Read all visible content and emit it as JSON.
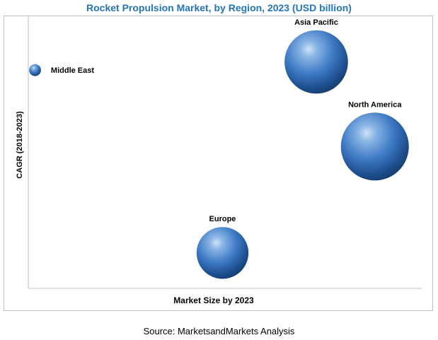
{
  "chart_data": {
    "type": "bubble",
    "title": "Rocket Propulsion Market, by Region, 2023 (USD billion)",
    "xlabel": "Market Size by 2023",
    "ylabel": "CAGR (2018-2023)",
    "xlim": [
      0,
      100
    ],
    "ylim": [
      0,
      100
    ],
    "grid": false,
    "legend": "none",
    "bubble_color": "#3d79c4",
    "points": [
      {
        "label": "Middle East",
        "x": 1,
        "y": 80,
        "size": 1
      },
      {
        "label": "Asia Pacific",
        "x": 73,
        "y": 83,
        "size": 86
      },
      {
        "label": "North America",
        "x": 88,
        "y": 52,
        "size": 100
      },
      {
        "label": "Europe",
        "x": 49,
        "y": 13,
        "size": 55
      }
    ],
    "source": "Source: MarketsandMarkets Analysis"
  }
}
